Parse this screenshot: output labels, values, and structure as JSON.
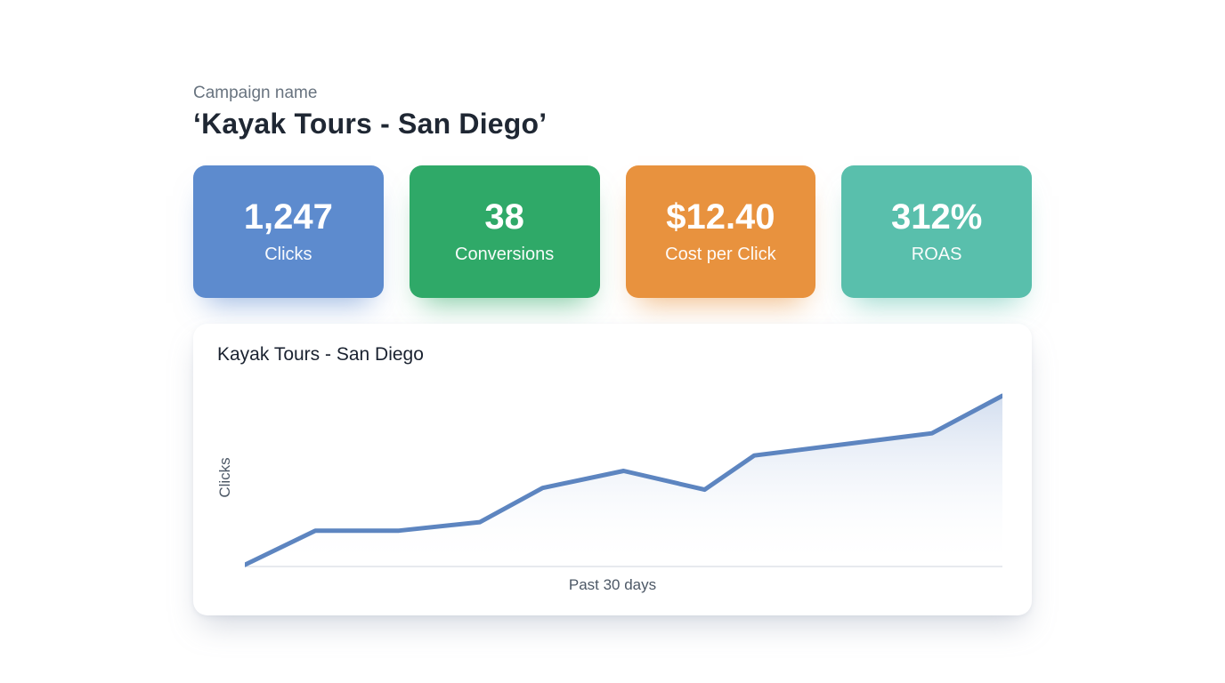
{
  "header": {
    "label": "Campaign name",
    "title": "‘Kayak Tours - San Diego’"
  },
  "stat_cards": [
    {
      "value": "1,247",
      "label": "Clicks",
      "color": "#5d8bce"
    },
    {
      "value": "38",
      "label": "Conversions",
      "color": "#2fa968"
    },
    {
      "value": "$12.40",
      "label": "Cost per Click",
      "color": "#e8923e"
    },
    {
      "value": "312%",
      "label": "ROAS",
      "color": "#59bfac"
    }
  ],
  "chart_data": {
    "type": "area",
    "title": "Kayak Tours - San Diego",
    "xlabel": "Past 30 days",
    "ylabel": "Clicks",
    "x_range": [
      1,
      30
    ],
    "ylim": [
      0,
      100
    ],
    "grid": false,
    "legend": false,
    "axis_ticks_visible": false,
    "note": "Single upward-trending clicks series; no numeric tick labels shown, values are relative (100 = final peak)",
    "line_color": "#5d85c0",
    "fill_top_color": "rgba(109,146,203,0.30)",
    "fill_bottom_color": "rgba(255,255,255,0)",
    "baseline_color": "#dfe3e9",
    "points": [
      {
        "day": 1,
        "value": 1
      },
      {
        "day": 3.7,
        "value": 21
      },
      {
        "day": 6.9,
        "value": 21
      },
      {
        "day": 10,
        "value": 26
      },
      {
        "day": 12.4,
        "value": 46
      },
      {
        "day": 15.5,
        "value": 56
      },
      {
        "day": 18.6,
        "value": 45
      },
      {
        "day": 20.5,
        "value": 65
      },
      {
        "day": 27.3,
        "value": 78
      },
      {
        "day": 30,
        "value": 100
      }
    ]
  }
}
